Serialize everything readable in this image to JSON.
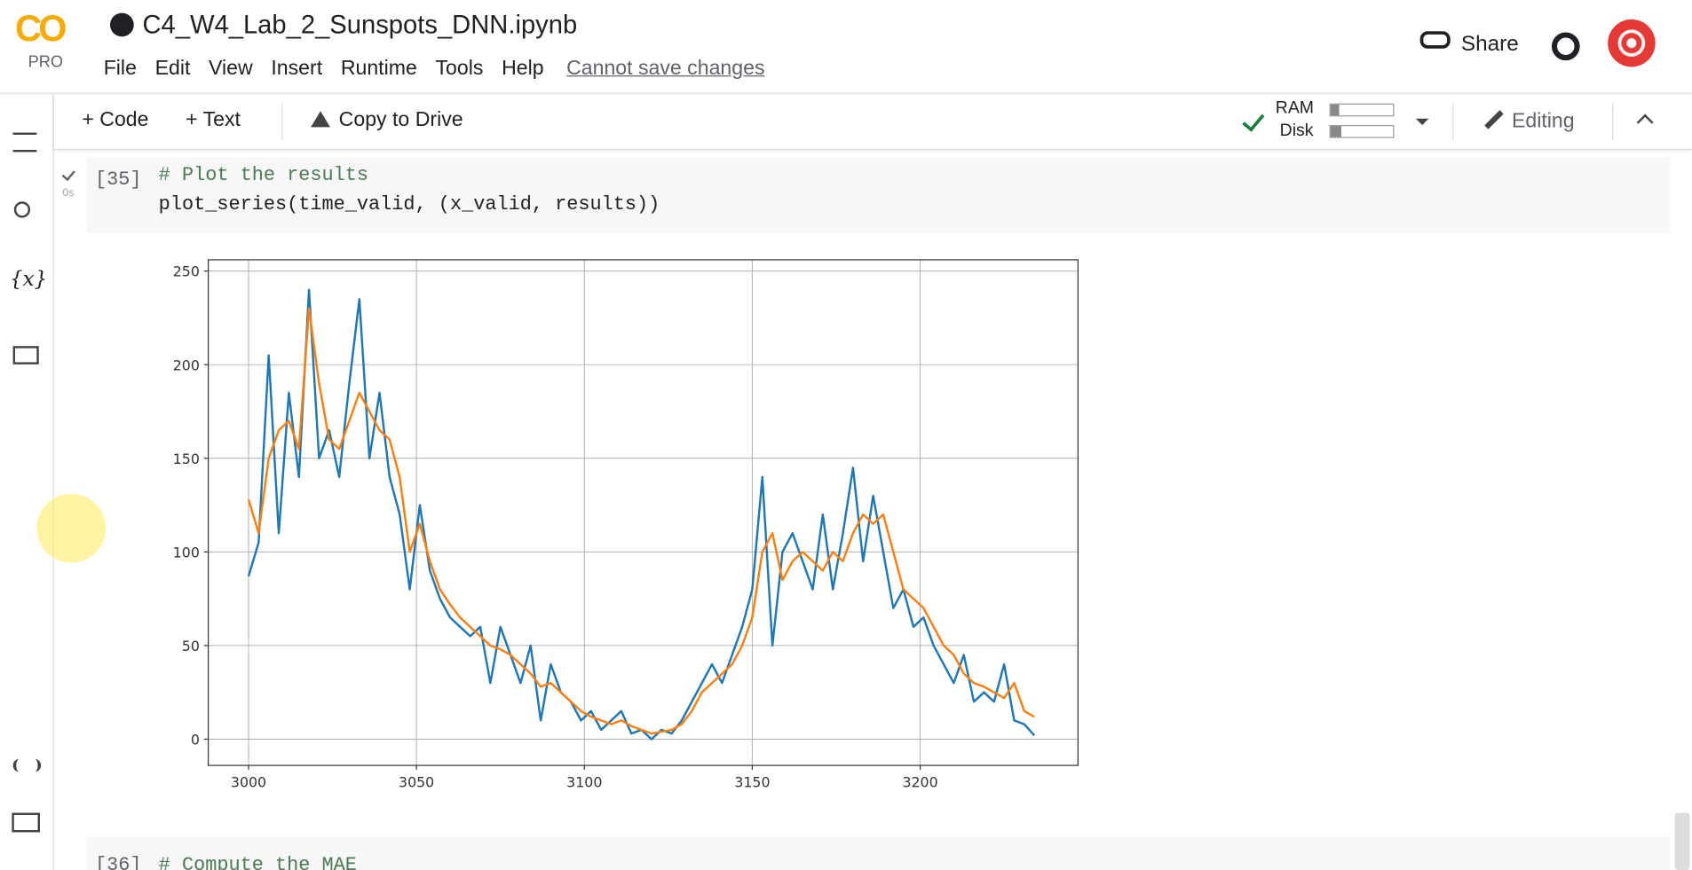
{
  "header": {
    "logo": "CO",
    "logo_badge": "PRO",
    "title": "C4_W4_Lab_2_Sunspots_DNN.ipynb",
    "menu": [
      "File",
      "Edit",
      "View",
      "Insert",
      "Runtime",
      "Tools",
      "Help"
    ],
    "save_status": "Cannot save changes",
    "share": "Share"
  },
  "toolbar": {
    "code": "Code",
    "text": "Text",
    "copy": "Copy to Drive",
    "ram": "RAM",
    "disk": "Disk",
    "mode": "Editing"
  },
  "sidebar": {
    "variables": "{x}"
  },
  "cells": [
    {
      "count": "[35]",
      "time": "0s",
      "code": [
        "# Plot the results",
        "plot_series(time_valid, (x_valid, results))"
      ]
    },
    {
      "count": "[36]",
      "code": [
        "# Compute the MAE"
      ]
    }
  ],
  "chart_data": {
    "type": "line",
    "x": [
      3000,
      3003,
      3006,
      3009,
      3012,
      3015,
      3018,
      3021,
      3024,
      3027,
      3030,
      3033,
      3036,
      3039,
      3042,
      3045,
      3048,
      3051,
      3054,
      3057,
      3060,
      3063,
      3066,
      3069,
      3072,
      3075,
      3078,
      3081,
      3084,
      3087,
      3090,
      3093,
      3096,
      3099,
      3102,
      3105,
      3108,
      3111,
      3114,
      3117,
      3120,
      3123,
      3126,
      3129,
      3132,
      3135,
      3138,
      3141,
      3144,
      3147,
      3150,
      3153,
      3156,
      3159,
      3162,
      3165,
      3168,
      3171,
      3174,
      3177,
      3180,
      3183,
      3186,
      3189,
      3192,
      3195,
      3198,
      3201,
      3204,
      3207,
      3210,
      3213,
      3216,
      3219,
      3222,
      3225,
      3228,
      3231,
      3234
    ],
    "series": [
      {
        "color": "#1f77b4",
        "values": [
          87,
          105,
          205,
          110,
          185,
          140,
          240,
          150,
          165,
          140,
          190,
          235,
          150,
          185,
          140,
          120,
          80,
          125,
          90,
          75,
          65,
          60,
          55,
          60,
          30,
          60,
          45,
          30,
          50,
          10,
          40,
          25,
          20,
          10,
          15,
          5,
          10,
          15,
          3,
          5,
          0,
          5,
          3,
          10,
          20,
          30,
          40,
          30,
          45,
          60,
          80,
          140,
          50,
          100,
          110,
          95,
          80,
          120,
          80,
          110,
          145,
          95,
          130,
          100,
          70,
          80,
          60,
          65,
          50,
          40,
          30,
          45,
          20,
          25,
          20,
          40,
          10,
          8,
          2
        ]
      },
      {
        "color": "#ff7f0e",
        "values": [
          128,
          110,
          150,
          165,
          170,
          155,
          230,
          190,
          160,
          155,
          170,
          185,
          175,
          165,
          160,
          140,
          100,
          115,
          95,
          80,
          72,
          65,
          60,
          55,
          50,
          48,
          45,
          40,
          35,
          28,
          30,
          25,
          20,
          15,
          12,
          10,
          8,
          10,
          7,
          5,
          3,
          4,
          5,
          8,
          15,
          25,
          30,
          35,
          40,
          50,
          65,
          100,
          110,
          85,
          95,
          100,
          95,
          90,
          100,
          95,
          110,
          120,
          115,
          120,
          100,
          80,
          75,
          70,
          60,
          50,
          45,
          35,
          30,
          28,
          25,
          22,
          30,
          15,
          12
        ]
      }
    ],
    "xlim": [
      2988,
      3247
    ],
    "ylim": [
      -14,
      256
    ],
    "xticks": [
      3000,
      3050,
      3100,
      3150,
      3200
    ],
    "yticks": [
      0,
      50,
      100,
      150,
      200,
      250
    ],
    "grid": true
  }
}
